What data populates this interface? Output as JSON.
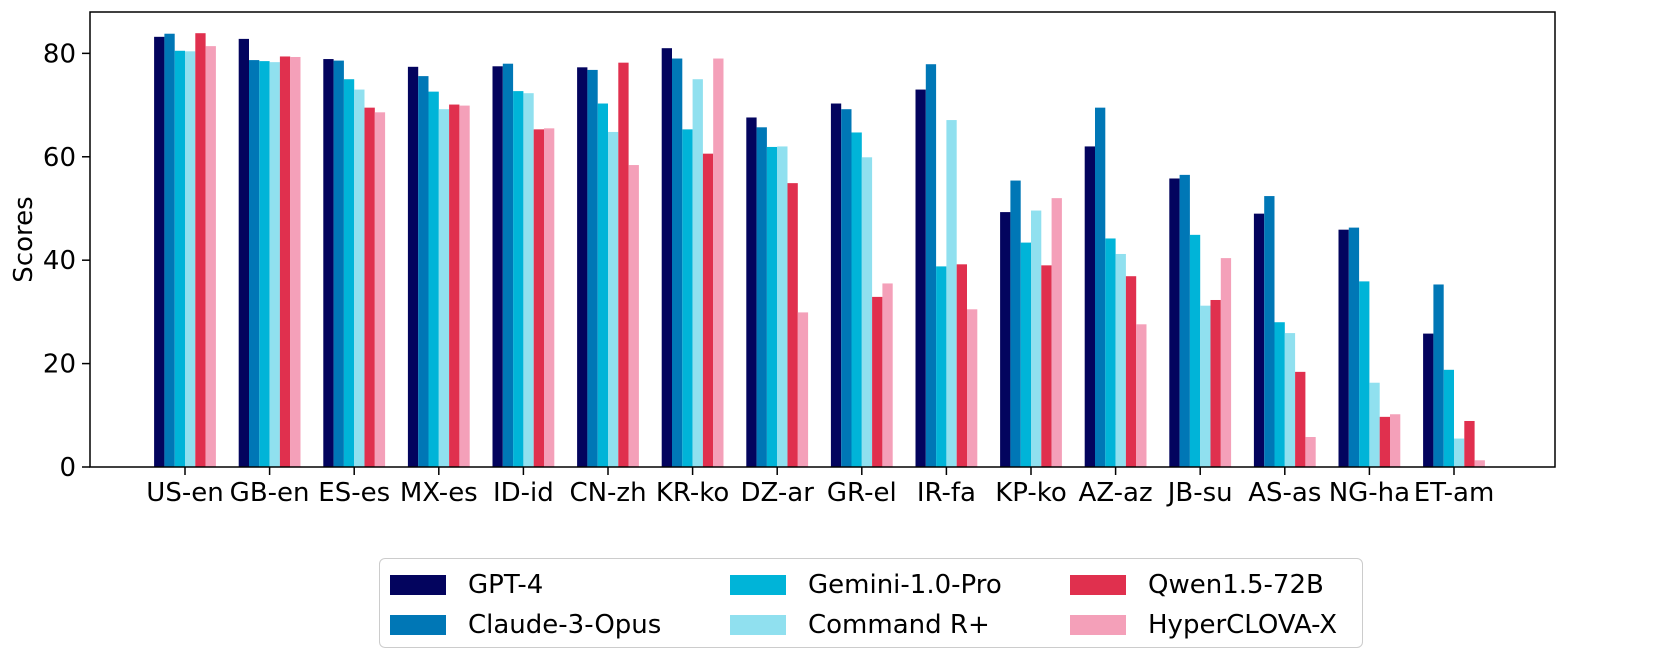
{
  "chart_data": {
    "type": "bar",
    "title": "",
    "xlabel": "",
    "ylabel": "Scores",
    "ylim": [
      0,
      88
    ],
    "yticks": [
      0,
      20,
      40,
      60,
      80
    ],
    "grid": false,
    "legend_position": "bottom-center",
    "categories": [
      "US-en",
      "GB-en",
      "ES-es",
      "MX-es",
      "ID-id",
      "CN-zh",
      "KR-ko",
      "DZ-ar",
      "GR-el",
      "IR-fa",
      "KP-ko",
      "AZ-az",
      "JB-su",
      "AS-as",
      "NG-ha",
      "ET-am"
    ],
    "series": [
      {
        "name": "GPT-4",
        "color": "#03045e",
        "values": [
          83.2,
          82.8,
          78.9,
          77.4,
          77.5,
          77.3,
          81.0,
          67.6,
          70.3,
          73.0,
          49.3,
          62.0,
          55.8,
          49.0,
          45.9,
          25.8
        ]
      },
      {
        "name": "Claude-3-Opus",
        "color": "#0077b6",
        "values": [
          83.8,
          78.7,
          78.6,
          75.6,
          78.0,
          76.8,
          79.0,
          65.7,
          69.2,
          77.9,
          55.4,
          69.5,
          56.5,
          52.4,
          46.3,
          35.3
        ]
      },
      {
        "name": "Gemini-1.0-Pro",
        "color": "#00b4d8",
        "values": [
          80.5,
          78.5,
          75.0,
          72.6,
          72.7,
          70.3,
          65.3,
          61.9,
          64.7,
          38.8,
          43.4,
          44.2,
          44.9,
          28.0,
          35.9,
          18.8
        ]
      },
      {
        "name": "Command R+",
        "color": "#90e0ef",
        "values": [
          80.4,
          78.3,
          73.0,
          69.2,
          72.3,
          64.8,
          75.0,
          62.0,
          59.9,
          67.1,
          49.6,
          41.2,
          31.2,
          25.9,
          16.3,
          5.5
        ]
      },
      {
        "name": "Qwen1.5-72B",
        "color": "#e0304e",
        "values": [
          83.9,
          79.4,
          69.5,
          70.1,
          65.3,
          78.2,
          60.6,
          54.9,
          32.9,
          39.2,
          39.0,
          36.9,
          32.3,
          18.4,
          9.7,
          8.9
        ]
      },
      {
        "name": "HyperCLOVA-X",
        "color": "#f4a0b9",
        "values": [
          81.4,
          79.3,
          68.6,
          69.9,
          65.5,
          58.4,
          79.0,
          29.9,
          35.5,
          30.5,
          52.0,
          27.6,
          40.4,
          5.8,
          10.2,
          1.3
        ]
      }
    ]
  }
}
